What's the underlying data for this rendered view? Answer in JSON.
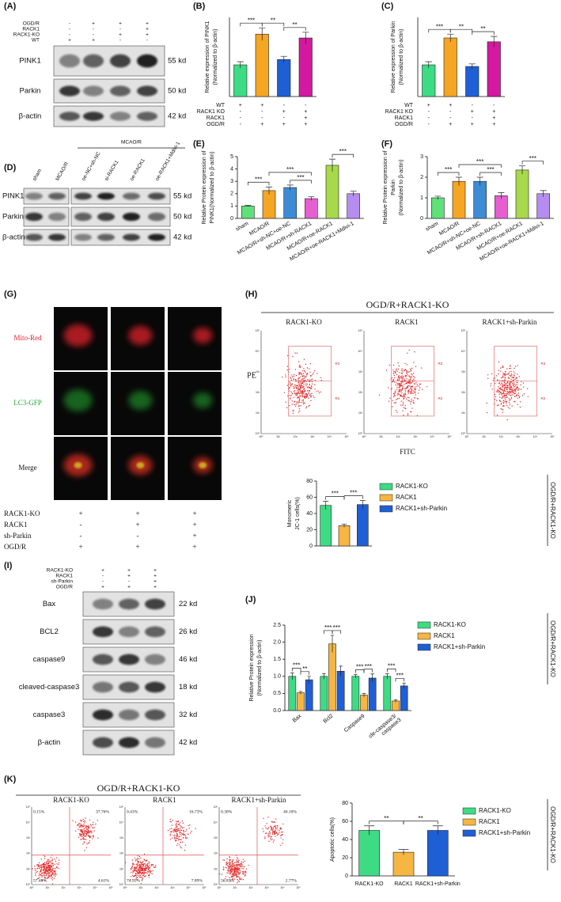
{
  "chart_data": [
    {
      "type": "bar",
      "panel": "(B)",
      "y_label": [
        "Relative expression of PINK1",
        "(Normalized to β-actin)"
      ],
      "values": [
        1.0,
        1.97,
        1.17,
        1.85
      ],
      "errors": [
        0.1,
        0.2,
        0.1,
        0.18
      ],
      "colors": [
        "#3ddc84",
        "#f5a623",
        "#1f5fd6",
        "#d4189f"
      ],
      "ylim": [
        0,
        2.5
      ],
      "comparisons": [
        {
          "label": "***",
          "pair": [
            0,
            1
          ]
        },
        {
          "label": "**",
          "pair": [
            1,
            2
          ]
        },
        {
          "label": "**",
          "pair": [
            2,
            3
          ]
        }
      ],
      "conditions": [
        {
          "name": "WT",
          "signs": [
            "+",
            "+",
            "-",
            "-"
          ]
        },
        {
          "name": "RACK1 KO",
          "signs": [
            "-",
            "-",
            "+",
            "+"
          ]
        },
        {
          "name": "RACK1",
          "signs": [
            "-",
            "-",
            "-",
            "+"
          ]
        },
        {
          "name": "OGD/R",
          "signs": [
            "-",
            "+",
            "+",
            "+"
          ]
        }
      ]
    },
    {
      "type": "bar",
      "panel": "(C)",
      "y_label": [
        "Relative expression of Parkin",
        "(Normalized to β-actin)"
      ],
      "values": [
        1.0,
        1.85,
        0.95,
        1.73
      ],
      "errors": [
        0.1,
        0.12,
        0.08,
        0.17
      ],
      "colors": [
        "#3ddc84",
        "#f5a623",
        "#1f5fd6",
        "#d4189f"
      ],
      "ylim": [
        0,
        2.5
      ],
      "comparisons": [
        {
          "label": "***",
          "pair": [
            0,
            1
          ]
        },
        {
          "label": "**",
          "pair": [
            1,
            2
          ]
        },
        {
          "label": "**",
          "pair": [
            2,
            3
          ]
        }
      ],
      "conditions": [
        {
          "name": "WT",
          "signs": [
            "+",
            "+",
            "-",
            "-"
          ]
        },
        {
          "name": "RACK1 KO",
          "signs": [
            "-",
            "-",
            "+",
            "+"
          ]
        },
        {
          "name": "RACK1",
          "signs": [
            "-",
            "-",
            "-",
            "+"
          ]
        },
        {
          "name": "OGD/R",
          "signs": [
            "-",
            "+",
            "+",
            "+"
          ]
        }
      ]
    },
    {
      "type": "bar",
      "panel": "(E)",
      "y_label": [
        "Relative Protein expression of",
        "PINK1(Normalized to β-actin)"
      ],
      "categories": [
        "sham",
        "MCAO/R",
        "MCAO/R+sh-NC+oe-NC",
        "MCAO/R+sh-RACK1",
        "MCAO/R+oe-RACK1",
        "MCAO/R+oe-RACK1+Mdivi-1"
      ],
      "values": [
        1.0,
        2.25,
        2.5,
        1.6,
        4.3,
        2.0
      ],
      "errors": [
        0.05,
        0.3,
        0.2,
        0.15,
        0.5,
        0.2
      ],
      "colors": [
        "#5ee07a",
        "#f5a623",
        "#3d8bd4",
        "#e55fd0",
        "#a8d94a",
        "#b58cf0"
      ],
      "ylim": [
        0,
        5
      ],
      "yticks": [
        0,
        1,
        2,
        3,
        4,
        5
      ],
      "comparisons": [
        {
          "label": "***",
          "pair": [
            0,
            1
          ]
        },
        {
          "label": "***",
          "pair": [
            2,
            3
          ]
        },
        {
          "label": "***",
          "pair": [
            1,
            3
          ]
        },
        {
          "label": "***",
          "pair": [
            4,
            5
          ]
        }
      ]
    },
    {
      "type": "bar",
      "panel": "(F)",
      "y_label": [
        "Relative Protein expression of",
        "Parkin",
        "(Normalized to β-actin)"
      ],
      "categories": [
        "sham",
        "MCAO/R",
        "MCAO/R+sh-NC+oe-NC",
        "MCAO/R+sh-RACK1",
        "MCAO/R+oe-RACK1",
        "MCAO/R+oe-RACK1+Mdivi-1"
      ],
      "values": [
        1.0,
        1.8,
        1.8,
        1.1,
        2.35,
        1.2
      ],
      "errors": [
        0.08,
        0.2,
        0.2,
        0.15,
        0.2,
        0.15
      ],
      "colors": [
        "#5ee07a",
        "#f5a623",
        "#3d8bd4",
        "#e55fd0",
        "#a8d94a",
        "#b58cf0"
      ],
      "ylim": [
        0,
        3
      ],
      "yticks": [
        0,
        1,
        2,
        3
      ],
      "comparisons": [
        {
          "label": "***",
          "pair": [
            0,
            1
          ]
        },
        {
          "label": "***",
          "pair": [
            2,
            3
          ]
        },
        {
          "label": "***",
          "pair": [
            1,
            3
          ]
        },
        {
          "label": "***",
          "pair": [
            4,
            5
          ]
        }
      ]
    },
    {
      "type": "bar",
      "y_label": [
        "Monomeric",
        "JC-1 cells(%)"
      ],
      "values": [
        50,
        25,
        51
      ],
      "errors": [
        5,
        2,
        5
      ],
      "colors": [
        "#3ddc84",
        "#f5b642",
        "#1f5fd6"
      ],
      "legend": [
        "RACK1-KO",
        "RACK1",
        "RACK1+sh-Parkin"
      ],
      "side_label": "OGD/R+RACK1-KO",
      "ylim": [
        0,
        80
      ],
      "yticks": [
        0,
        20,
        40,
        60,
        80
      ],
      "comparisons": [
        {
          "label": "***",
          "pair": [
            0,
            1
          ]
        },
        {
          "label": "***",
          "pair": [
            1,
            2
          ]
        }
      ]
    },
    {
      "type": "bar",
      "panel": "(J)",
      "y_label": [
        "Relative Protein expression",
        "(Normalized to β-actin)"
      ],
      "categories": [
        "Bax",
        "Bcl2",
        "Caspase9",
        [
          "cle-caspase3/",
          "caspase3"
        ]
      ],
      "series": [
        {
          "name": "RACK1-KO",
          "color": "#3ddc84",
          "values": [
            1.0,
            1.0,
            1.0,
            1.0
          ],
          "errors": [
            0.1,
            0.08,
            0.05,
            0.08
          ]
        },
        {
          "name": "RACK1",
          "color": "#f5b642",
          "values": [
            0.52,
            1.95,
            0.45,
            0.28
          ],
          "errors": [
            0.04,
            0.25,
            0.05,
            0.04
          ]
        },
        {
          "name": "RACK1+sh-Parkin",
          "color": "#1f5fd6",
          "values": [
            0.9,
            1.15,
            0.95,
            0.72
          ],
          "errors": [
            0.1,
            0.15,
            0.12,
            0.08
          ]
        }
      ],
      "side_label": "OGD/R+RACK1-KO",
      "ylim": [
        0,
        2.5
      ],
      "yticks": [
        {
          "value": 0,
          "label": "0.0"
        },
        0.5,
        {
          "value": 1,
          "label": "1.0"
        },
        1.5,
        {
          "value": 2,
          "label": "2.0"
        },
        2.5
      ],
      "comparisons": [
        {
          "label": "***",
          "group": 0,
          "pair": [
            0,
            1
          ]
        },
        {
          "label": "**",
          "group": 0,
          "pair": [
            1,
            2
          ]
        },
        {
          "label": "***",
          "group": 1,
          "pair": [
            0,
            1
          ]
        },
        {
          "label": "***",
          "group": 1,
          "pair": [
            1,
            2
          ]
        },
        {
          "label": "***",
          "group": 2,
          "pair": [
            0,
            1
          ]
        },
        {
          "label": "***",
          "group": 2,
          "pair": [
            1,
            2
          ]
        },
        {
          "label": "***",
          "group": 3,
          "pair": [
            0,
            1
          ]
        },
        {
          "label": "***",
          "group": 3,
          "pair": [
            1,
            2
          ]
        }
      ]
    },
    {
      "type": "bar",
      "y_label": [
        "Apoptotic cells(%)"
      ],
      "categories": [
        "RACK1-KO",
        "RACK1",
        "RACK1+sh-Parkin"
      ],
      "values": [
        50,
        26,
        50
      ],
      "errors": [
        5,
        3,
        5
      ],
      "colors": [
        "#3ddc84",
        "#f5b642",
        "#1f5fd6"
      ],
      "legend": [
        "RACK1-KO",
        "RACK1",
        "RACK1+sh-Parkin"
      ],
      "side_label": "OGD/R+RACK1-KO",
      "ylim": [
        0,
        80
      ],
      "yticks": [
        0,
        20,
        40,
        60,
        80
      ],
      "comparisons": [
        {
          "label": "**",
          "pair": [
            0,
            1
          ]
        },
        {
          "label": "**",
          "pair": [
            1,
            2
          ]
        }
      ]
    }
  ],
  "blots": [
    {
      "panel": "(A)",
      "conditions": [
        {
          "name": "OGD/R",
          "signs": [
            "-",
            "+",
            "+",
            "+"
          ]
        },
        {
          "name": "RACK1",
          "signs": [
            "-",
            "-",
            "-",
            "+"
          ]
        },
        {
          "name": "RACK1-KO",
          "signs": [
            "-",
            "-",
            "+",
            "+"
          ]
        },
        {
          "name": "WT",
          "signs": [
            "+",
            "+",
            "-",
            "-"
          ]
        }
      ],
      "rows": [
        {
          "name": "PINK1",
          "size": "55 kd"
        },
        {
          "name": "Parkin",
          "size": "50 kd"
        },
        {
          "name": "β-actin",
          "size": "42 kd"
        }
      ]
    },
    {
      "panel": "(D)",
      "group_label": "MCAO/R",
      "lanes": [
        "sham",
        "MCAO/R",
        "oe-NC+sh-NC",
        "si-RACK1",
        "oe-RACK1",
        "oe-RACK1+Mdivi-1"
      ],
      "rows": [
        {
          "name": "PINK1",
          "size": "55 kd"
        },
        {
          "name": "Parkin",
          "size": "50 kd"
        },
        {
          "name": "β-actin",
          "size": "42 kd"
        }
      ]
    },
    {
      "panel": "(I)",
      "conditions": [
        {
          "name": "RACK1-KO",
          "signs": [
            "+",
            "+",
            "+"
          ]
        },
        {
          "name": "RACK1",
          "signs": [
            "-",
            "+",
            "+"
          ]
        },
        {
          "name": "sh-Parkin",
          "signs": [
            "-",
            "-",
            "+"
          ]
        },
        {
          "name": "OGD/R",
          "signs": [
            "+",
            "+",
            "+"
          ]
        }
      ],
      "rows": [
        {
          "name": "Bax",
          "size": "22 kd"
        },
        {
          "name": "BCL2",
          "size": "26 kd"
        },
        {
          "name": "caspase9",
          "size": "46 kd"
        },
        {
          "name": "cleaved-caspase3",
          "size": "18 kd"
        },
        {
          "name": "caspase3",
          "size": "32 kd"
        },
        {
          "name": "β-actin",
          "size": "42 kd"
        }
      ]
    }
  ],
  "imaging": {
    "panel": "(G)",
    "rows": [
      "Mito-Red",
      "LC3-GFP",
      "Merge"
    ],
    "conditions": [
      {
        "name": "RACK1-KO",
        "signs": [
          "+",
          "+",
          "+"
        ]
      },
      {
        "name": "RACK1",
        "signs": [
          "-",
          "+",
          "+"
        ]
      },
      {
        "name": "sh-Parkin",
        "signs": [
          "-",
          "-",
          "+"
        ]
      },
      {
        "name": "OGD/R",
        "signs": [
          "+",
          "+",
          "+"
        ]
      }
    ]
  },
  "flow": [
    {
      "panel": "(H)",
      "title": "OGD/R+RACK1-KO",
      "plots": [
        {
          "name": "RACK1-KO"
        },
        {
          "name": "RACK1"
        },
        {
          "name": "RACK1+sh-Parkin"
        }
      ],
      "y_axis": "PE",
      "x_axis": "FITC",
      "gates": [
        "R3",
        "R2"
      ],
      "axis_ticks": [
        "10⁰",
        "10¹",
        "10²",
        "10³",
        "10⁴",
        "10⁵"
      ]
    },
    {
      "panel": "(K)",
      "title": "OGD/R+RACK1-KO",
      "plots": [
        {
          "name": "RACK1-KO",
          "quadrants": [
            "0.15%",
            "37.76%",
            "57.48%",
            "4.61%"
          ]
        },
        {
          "name": "RACK1",
          "quadrants": [
            "0.43%",
            "16.73%",
            "74.95%",
            "7.89%"
          ]
        },
        {
          "name": "RACK1+sh-Parkin",
          "quadrants": [
            "0.30%",
            "40.10%",
            "56.83%",
            "2.77%"
          ]
        }
      ],
      "axis_ticks": [
        "10⁰",
        "10¹",
        "10²",
        "10³",
        "10⁴",
        "10⁵"
      ]
    }
  ]
}
